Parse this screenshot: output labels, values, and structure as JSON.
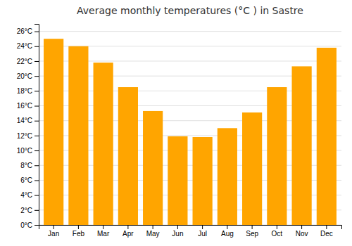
{
  "chart_data": {
    "type": "bar",
    "title": "Average monthly temperatures (°C ) in Sastre",
    "categories": [
      "Jan",
      "Feb",
      "Mar",
      "Apr",
      "May",
      "Jun",
      "Jul",
      "Aug",
      "Sep",
      "Oct",
      "Nov",
      "Dec"
    ],
    "values": [
      25.0,
      24.0,
      21.8,
      18.5,
      15.3,
      11.9,
      11.8,
      13.0,
      15.1,
      18.5,
      21.3,
      23.8
    ],
    "color": "#FFA500",
    "ylim": [
      0,
      27
    ],
    "yticks": [
      {
        "value": 0,
        "label": "0°C"
      },
      {
        "value": 2,
        "label": "2°C"
      },
      {
        "value": 4,
        "label": "4°C"
      },
      {
        "value": 6,
        "label": "6°C"
      },
      {
        "value": 8,
        "label": "8°C"
      },
      {
        "value": 10,
        "label": "10°C"
      },
      {
        "value": 12,
        "label": "12°C"
      },
      {
        "value": 14,
        "label": "14°C"
      },
      {
        "value": 16,
        "label": "16°C"
      },
      {
        "value": 18,
        "label": "18°C"
      },
      {
        "value": 20,
        "label": "20°C"
      },
      {
        "value": 22,
        "label": "22°C"
      },
      {
        "value": 24,
        "label": "24°C"
      },
      {
        "value": 26,
        "label": "26°C"
      }
    ],
    "grid": true
  }
}
